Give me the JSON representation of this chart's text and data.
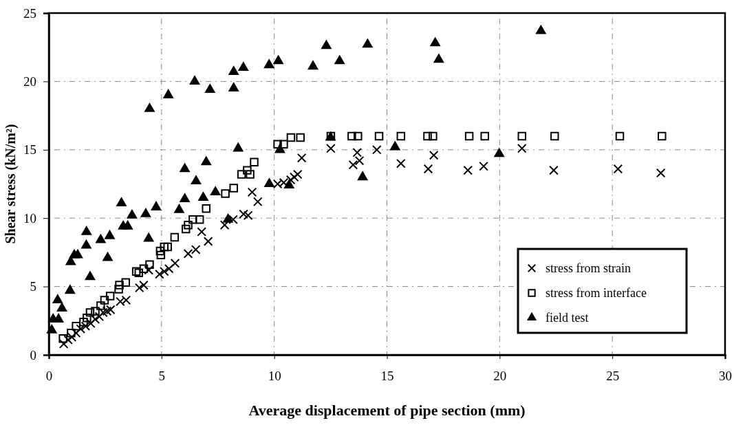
{
  "chart_data": {
    "type": "scatter",
    "xlabel": "Average displacement of pipe section (mm)",
    "ylabel": "Shear stress (kN/m²)",
    "xlim": [
      0,
      30
    ],
    "xticks": [
      0,
      5,
      10,
      15,
      20,
      25,
      30
    ],
    "ylim": [
      0,
      25
    ],
    "yticks": [
      0,
      5,
      10,
      15,
      20,
      25
    ],
    "grid": true,
    "legend": "bottom right",
    "series": [
      {
        "name": "stress from strain",
        "color": "#000000",
        "marker": "cross",
        "x": [
          0.66,
          0.86,
          1.02,
          1.21,
          1.41,
          1.63,
          1.86,
          2.06,
          2.24,
          2.41,
          2.58,
          2.74,
          3.17,
          3.43,
          4.02,
          4.21,
          4.43,
          4.91,
          5.12,
          5.33,
          5.6,
          6.18,
          6.52,
          6.78,
          7.07,
          7.8,
          8.18,
          8.64,
          8.84,
          9.02,
          9.27,
          10.15,
          10.42,
          10.73,
          10.89,
          11.04,
          11.22,
          12.51,
          13.5,
          13.68,
          13.78,
          14.55,
          15.62,
          16.83,
          17.08,
          18.59,
          19.29,
          20.99,
          22.4,
          25.25,
          27.15
        ],
        "values": [
          0.8,
          1.1,
          1.3,
          1.6,
          1.9,
          2.1,
          2.3,
          2.6,
          2.8,
          3.1,
          3.2,
          3.3,
          3.9,
          4.0,
          4.9,
          5.1,
          6.2,
          5.9,
          6.1,
          6.3,
          6.7,
          7.4,
          7.7,
          9.0,
          8.3,
          9.5,
          9.9,
          10.3,
          10.2,
          11.9,
          11.2,
          12.5,
          12.6,
          12.8,
          13.0,
          13.2,
          14.4,
          15.1,
          13.9,
          14.8,
          14.2,
          15.0,
          14.0,
          13.6,
          14.6,
          13.5,
          13.8,
          15.1,
          13.5,
          13.6,
          13.3
        ]
      },
      {
        "name": "stress from interface",
        "color": "#000000",
        "marker": "square",
        "x": [
          0.63,
          0.99,
          1.21,
          1.54,
          1.69,
          1.83,
          2.06,
          2.3,
          2.47,
          2.72,
          3.1,
          3.13,
          3.41,
          3.88,
          3.99,
          4.21,
          4.47,
          4.94,
          4.97,
          5.12,
          5.27,
          5.58,
          6.08,
          6.18,
          6.39,
          6.69,
          6.98,
          7.83,
          8.2,
          8.55,
          8.8,
          8.93,
          9.11,
          10.15,
          10.42,
          10.74,
          11.16,
          12.51,
          13.44,
          13.71,
          14.65,
          15.62,
          16.8,
          17.04,
          18.65,
          19.34,
          20.99,
          22.44,
          25.33,
          27.2
        ],
        "values": [
          1.2,
          1.6,
          2.1,
          2.4,
          2.7,
          3.1,
          3.2,
          3.6,
          4.0,
          4.3,
          4.8,
          5.1,
          5.3,
          6.1,
          6.0,
          6.3,
          6.6,
          7.6,
          7.3,
          7.9,
          7.9,
          8.6,
          9.2,
          9.5,
          9.9,
          9.9,
          10.7,
          11.8,
          12.2,
          13.2,
          13.5,
          13.2,
          14.1,
          15.4,
          15.4,
          15.9,
          15.9,
          16,
          16,
          16,
          16,
          16,
          16,
          16,
          16,
          16,
          16,
          16,
          16,
          16
        ]
      },
      {
        "name": "field test",
        "color": "#000000",
        "marker": "triangle",
        "x": [
          0.13,
          0.19,
          0.43,
          0.39,
          0.58,
          0.94,
          0.97,
          1.13,
          1.28,
          1.66,
          1.67,
          1.83,
          2.3,
          2.61,
          2.7,
          3.22,
          3.3,
          3.5,
          3.69,
          4.3,
          4.43,
          4.47,
          4.76,
          5.3,
          5.78,
          6.03,
          6.03,
          6.47,
          6.53,
          6.85,
          6.98,
          7.15,
          7.39,
          7.95,
          8.2,
          8.2,
          8.4,
          8.63,
          9.77,
          9.78,
          10.18,
          10.25,
          10.66,
          11.72,
          12.31,
          12.5,
          12.9,
          13.92,
          14.14,
          15.36,
          17.14,
          17.3,
          19.98,
          21.83
        ],
        "values": [
          1.8,
          2.6,
          2.6,
          4.0,
          3.4,
          4.7,
          6.8,
          7.3,
          7.3,
          8.0,
          9.0,
          5.7,
          8.4,
          7.1,
          8.7,
          11.1,
          9.4,
          9.4,
          10.2,
          10.3,
          8.5,
          18.0,
          10.8,
          19.0,
          10.6,
          11.4,
          13.6,
          20.0,
          12.7,
          11.5,
          14.1,
          19.4,
          11.9,
          9.9,
          20.7,
          19.5,
          15.1,
          21.0,
          21.2,
          12.5,
          21.5,
          15.0,
          12.4,
          21.1,
          22.6,
          15.9,
          21.5,
          13.0,
          22.7,
          15.2,
          22.8,
          21.6,
          14.7,
          23.7
        ]
      }
    ]
  }
}
